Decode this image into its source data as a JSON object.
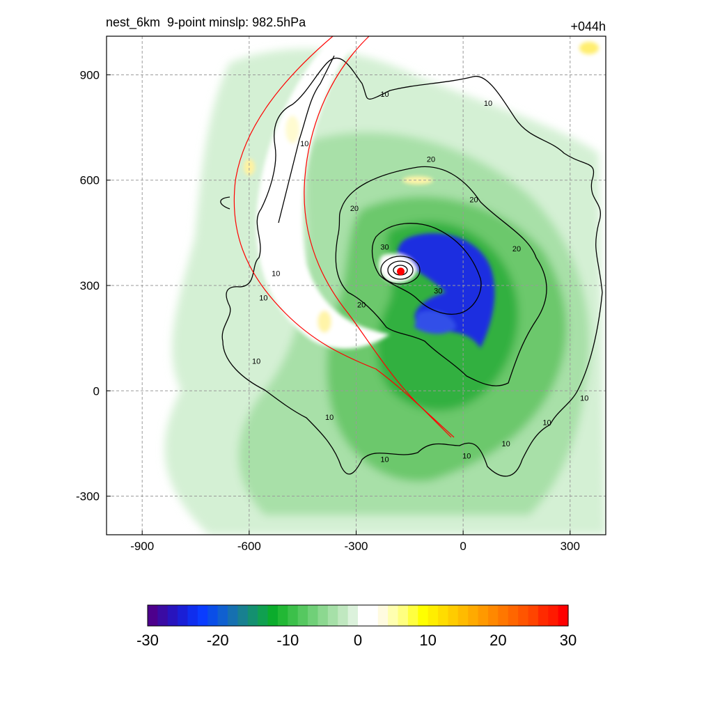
{
  "header": {
    "title": "nest_6km  9-point minslp: 982.5hPa",
    "forecast_hour": "+044h"
  },
  "chart_data": {
    "type": "heatmap",
    "x_ticks": [
      -900,
      -600,
      -300,
      0,
      300
    ],
    "y_ticks": [
      900,
      600,
      300,
      0,
      -300
    ],
    "xlim": [
      -1000,
      400
    ],
    "ylim": [
      -410,
      1010
    ],
    "grid": true,
    "center": {
      "x": -175,
      "y": 340
    },
    "contour_labels": [
      {
        "text": "10",
        "x": -220,
        "y": 845
      },
      {
        "text": "10",
        "x": 70,
        "y": 820
      },
      {
        "text": "10",
        "x": -445,
        "y": 705
      },
      {
        "text": "20",
        "x": -90,
        "y": 660
      },
      {
        "text": "20",
        "x": 30,
        "y": 545
      },
      {
        "text": "20",
        "x": -305,
        "y": 520
      },
      {
        "text": "30",
        "x": -220,
        "y": 410
      },
      {
        "text": "20",
        "x": 150,
        "y": 405
      },
      {
        "text": "10",
        "x": -525,
        "y": 335
      },
      {
        "text": "30",
        "x": -70,
        "y": 285
      },
      {
        "text": "10",
        "x": -560,
        "y": 265
      },
      {
        "text": "20",
        "x": -285,
        "y": 245
      },
      {
        "text": "10",
        "x": -580,
        "y": 85
      },
      {
        "text": "10",
        "x": 340,
        "y": -20
      },
      {
        "text": "10",
        "x": -375,
        "y": -75
      },
      {
        "text": "10",
        "x": 235,
        "y": -90
      },
      {
        "text": "10",
        "x": 120,
        "y": -150
      },
      {
        "text": "10",
        "x": 10,
        "y": -185
      },
      {
        "text": "10",
        "x": -220,
        "y": -195
      }
    ],
    "colorbar": {
      "ticks": [
        -30,
        -20,
        -10,
        0,
        10,
        20,
        30
      ],
      "min": -30,
      "max": 30,
      "colors": [
        "#4d008c",
        "#3a0ba3",
        "#2814bd",
        "#1a1fd6",
        "#0f2eee",
        "#0a3cff",
        "#0a4ee8",
        "#1060d0",
        "#1670b0",
        "#188090",
        "#149070",
        "#10a050",
        "#0bac2c",
        "#22b835",
        "#3cc04a",
        "#56c860",
        "#70d078",
        "#8cd890",
        "#a6e0a8",
        "#c0e8c0",
        "#dcf2dc",
        "#ffffff",
        "#ffffff",
        "#fffbe0",
        "#ffffb0",
        "#ffff80",
        "#ffff40",
        "#ffff00",
        "#ffee00",
        "#ffdd00",
        "#ffcc00",
        "#ffbb00",
        "#ffaa00",
        "#ff9900",
        "#ff8800",
        "#ff7700",
        "#ff6600",
        "#ff5500",
        "#ff4400",
        "#ff2a00",
        "#ff1a00",
        "#ff0000"
      ]
    }
  }
}
